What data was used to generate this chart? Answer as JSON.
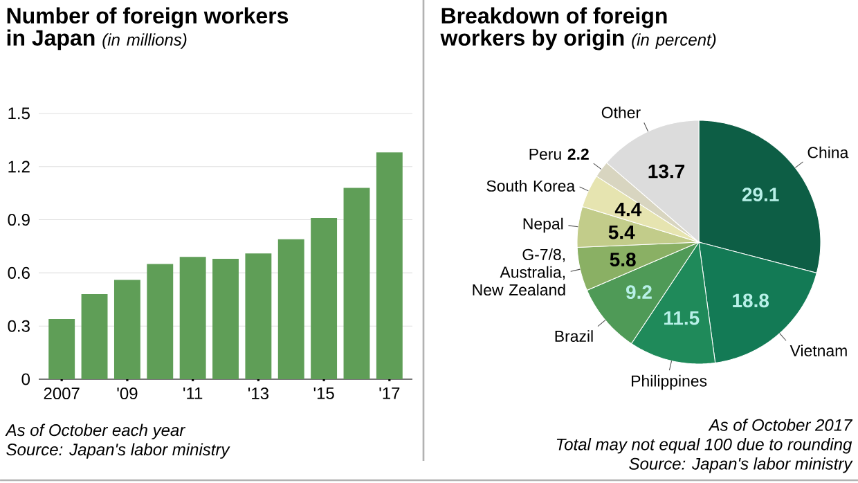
{
  "chart_data": [
    {
      "type": "bar",
      "title": "Number of foreign workers in Japan",
      "subtitle": "(in millions)",
      "categories": [
        "2007",
        null,
        "'09",
        null,
        "'11",
        null,
        "'13",
        null,
        "'15",
        null,
        "'17"
      ],
      "values": [
        0.34,
        0.48,
        0.56,
        0.65,
        0.69,
        0.68,
        0.71,
        0.79,
        0.91,
        1.08,
        1.28
      ],
      "color": "#5f9e57",
      "ylim": [
        0,
        1.5
      ],
      "yticks": [
        0,
        0.3,
        0.6,
        0.9,
        1.2,
        1.5
      ],
      "grid": "y",
      "annotations": [
        "As of October each year",
        "Source: Japan's labor ministry"
      ]
    },
    {
      "type": "pie",
      "title": "Breakdown of foreign workers by origin",
      "subtitle": "(in percent)",
      "categories": [
        "China",
        "Vietnam",
        "Philippines",
        "Brazil",
        "G-7/8, Australia, New Zealand",
        "Nepal",
        "South Korea",
        "Peru",
        "Other"
      ],
      "values": [
        29.1,
        18.8,
        11.5,
        9.2,
        5.8,
        5.4,
        4.4,
        2.2,
        13.7
      ],
      "colors": [
        "#0d5e45",
        "#137a55",
        "#1f8a5a",
        "#4f9a57",
        "#8ab064",
        "#c2cc8a",
        "#e6e4b0",
        "#d8d5c0",
        "#dcdcdc"
      ],
      "data_labels": true,
      "annotations": [
        "As of October 2017",
        "Total may not equal 100 due to rounding",
        "Source: Japan's labor ministry"
      ]
    }
  ]
}
